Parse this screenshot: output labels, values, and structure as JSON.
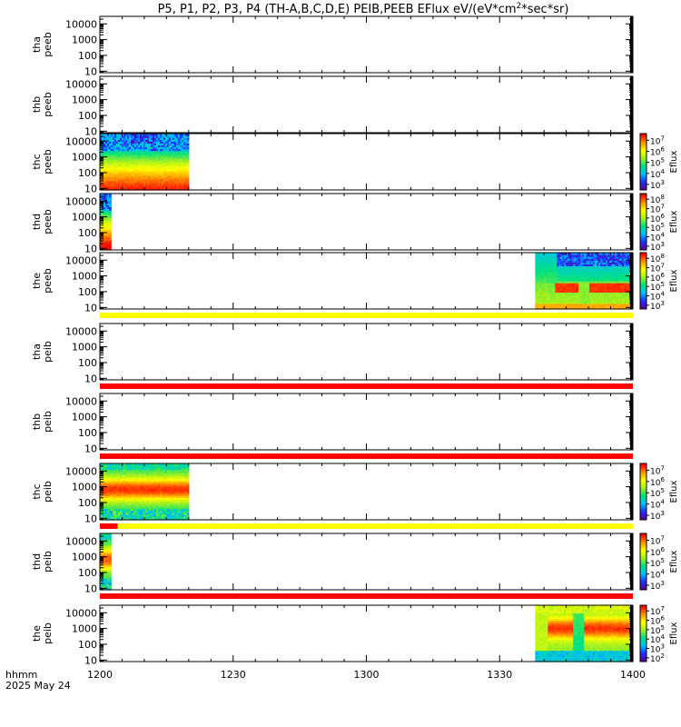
{
  "chart_data": {
    "type": "heatmap",
    "title": "P5, P1, P2, P3, P4 (TH-A,B,C,D,E) PEIB,PEEB EFlux eV/(eV*cm",
    "title_sup": "2",
    "title_tail": "*sec*sr)",
    "x_ticks": [
      "1200",
      "1230",
      "1300",
      "1330",
      "1400"
    ],
    "x_range_minutes": [
      0,
      120
    ],
    "x_label_line1": "hhmm",
    "x_label_line2": "2025 May 24",
    "y_axis": {
      "scale": "log",
      "range": [
        8,
        30000
      ],
      "ticks": [
        {
          "v": 10,
          "label": "10"
        },
        {
          "v": 100,
          "label": "100"
        },
        {
          "v": 1000,
          "label": "1000"
        },
        {
          "v": 10000,
          "label": "10000"
        }
      ]
    },
    "colormap": [
      "#5a0090",
      "#2030ff",
      "#00c0ff",
      "#00e080",
      "#a0f020",
      "#ffff00",
      "#ff9000",
      "#ff0000"
    ],
    "panels": [
      {
        "name": "tha peeb",
        "label1": "tha",
        "label2": "peeb",
        "blocks": [],
        "colorbar": null,
        "flags": []
      },
      {
        "name": "thb peeb",
        "label1": "thb",
        "label2": "peeb",
        "blocks": [],
        "colorbar": null,
        "flags": []
      },
      {
        "name": "thc peeb",
        "label1": "thc",
        "label2": "peeb",
        "blocks": [
          {
            "t0": 0,
            "t1": 20,
            "style": "electron",
            "hot": 0.35
          }
        ],
        "colorbar": {
          "label": "Eflux",
          "exps": [
            "3",
            "4",
            "5",
            "6",
            "7"
          ],
          "exp_range": [
            2.5,
            7.6
          ]
        },
        "flags": []
      },
      {
        "name": "thd peeb",
        "label1": "thd",
        "label2": "peeb",
        "blocks": [
          {
            "t0": 0,
            "t1": 2.5,
            "style": "electron",
            "hot": 0.6
          }
        ],
        "colorbar": {
          "label": "Eflux",
          "exps": [
            "3",
            "4",
            "5",
            "6",
            "7",
            "8"
          ],
          "exp_range": [
            2.6,
            8.6
          ]
        },
        "flags": []
      },
      {
        "name": "the peeb",
        "label1": "the",
        "label2": "peeb",
        "blocks": [
          {
            "t0": 98,
            "t1": 120,
            "style": "sheath",
            "hot": 0.5
          }
        ],
        "colorbar": {
          "label": "Eflux",
          "exps": [
            "3",
            "4",
            "5",
            "6",
            "7",
            "8"
          ],
          "exp_range": [
            2.6,
            8.6
          ]
        },
        "flags": [
          {
            "t0": 0,
            "t1": 120,
            "color": "#ffff00"
          }
        ]
      },
      {
        "name": "tha peib",
        "label1": "tha",
        "label2": "peib",
        "blocks": [],
        "colorbar": null,
        "flags": [
          {
            "t0": 0,
            "t1": 120,
            "color": "#ff0000"
          }
        ]
      },
      {
        "name": "thb peib",
        "label1": "thb",
        "label2": "peib",
        "blocks": [],
        "colorbar": null,
        "flags": [
          {
            "t0": 0,
            "t1": 120,
            "color": "#ff0000"
          }
        ]
      },
      {
        "name": "thc peib",
        "label1": "thc",
        "label2": "peib",
        "blocks": [
          {
            "t0": 0,
            "t1": 20,
            "style": "ion",
            "hot": 0.5
          }
        ],
        "colorbar": {
          "label": "Eflux",
          "exps": [
            "3",
            "4",
            "5",
            "6",
            "7"
          ],
          "exp_range": [
            2.6,
            7.6
          ]
        },
        "flags": [
          {
            "t0": 0,
            "t1": 4,
            "color": "#ff0000"
          },
          {
            "t0": 4,
            "t1": 120,
            "color": "#ffff00"
          }
        ]
      },
      {
        "name": "thd peib",
        "label1": "thd",
        "label2": "peib",
        "blocks": [
          {
            "t0": 0,
            "t1": 2.5,
            "style": "ion",
            "hot": 0.3
          }
        ],
        "colorbar": {
          "label": "Eflux",
          "exps": [
            "3",
            "4",
            "5",
            "6",
            "7"
          ],
          "exp_range": [
            2.6,
            7.6
          ]
        },
        "flags": [
          {
            "t0": 0,
            "t1": 120,
            "color": "#ff0000"
          }
        ]
      },
      {
        "name": "the peib",
        "label1": "the",
        "label2": "peib",
        "blocks": [
          {
            "t0": 98,
            "t1": 120,
            "style": "ionhot",
            "hot": 0.5
          }
        ],
        "colorbar": {
          "label": "Eflux",
          "exps": [
            "2",
            "3",
            "4",
            "5",
            "6",
            "7"
          ],
          "exp_range": [
            1.6,
            7.6
          ]
        },
        "flags": []
      }
    ]
  }
}
